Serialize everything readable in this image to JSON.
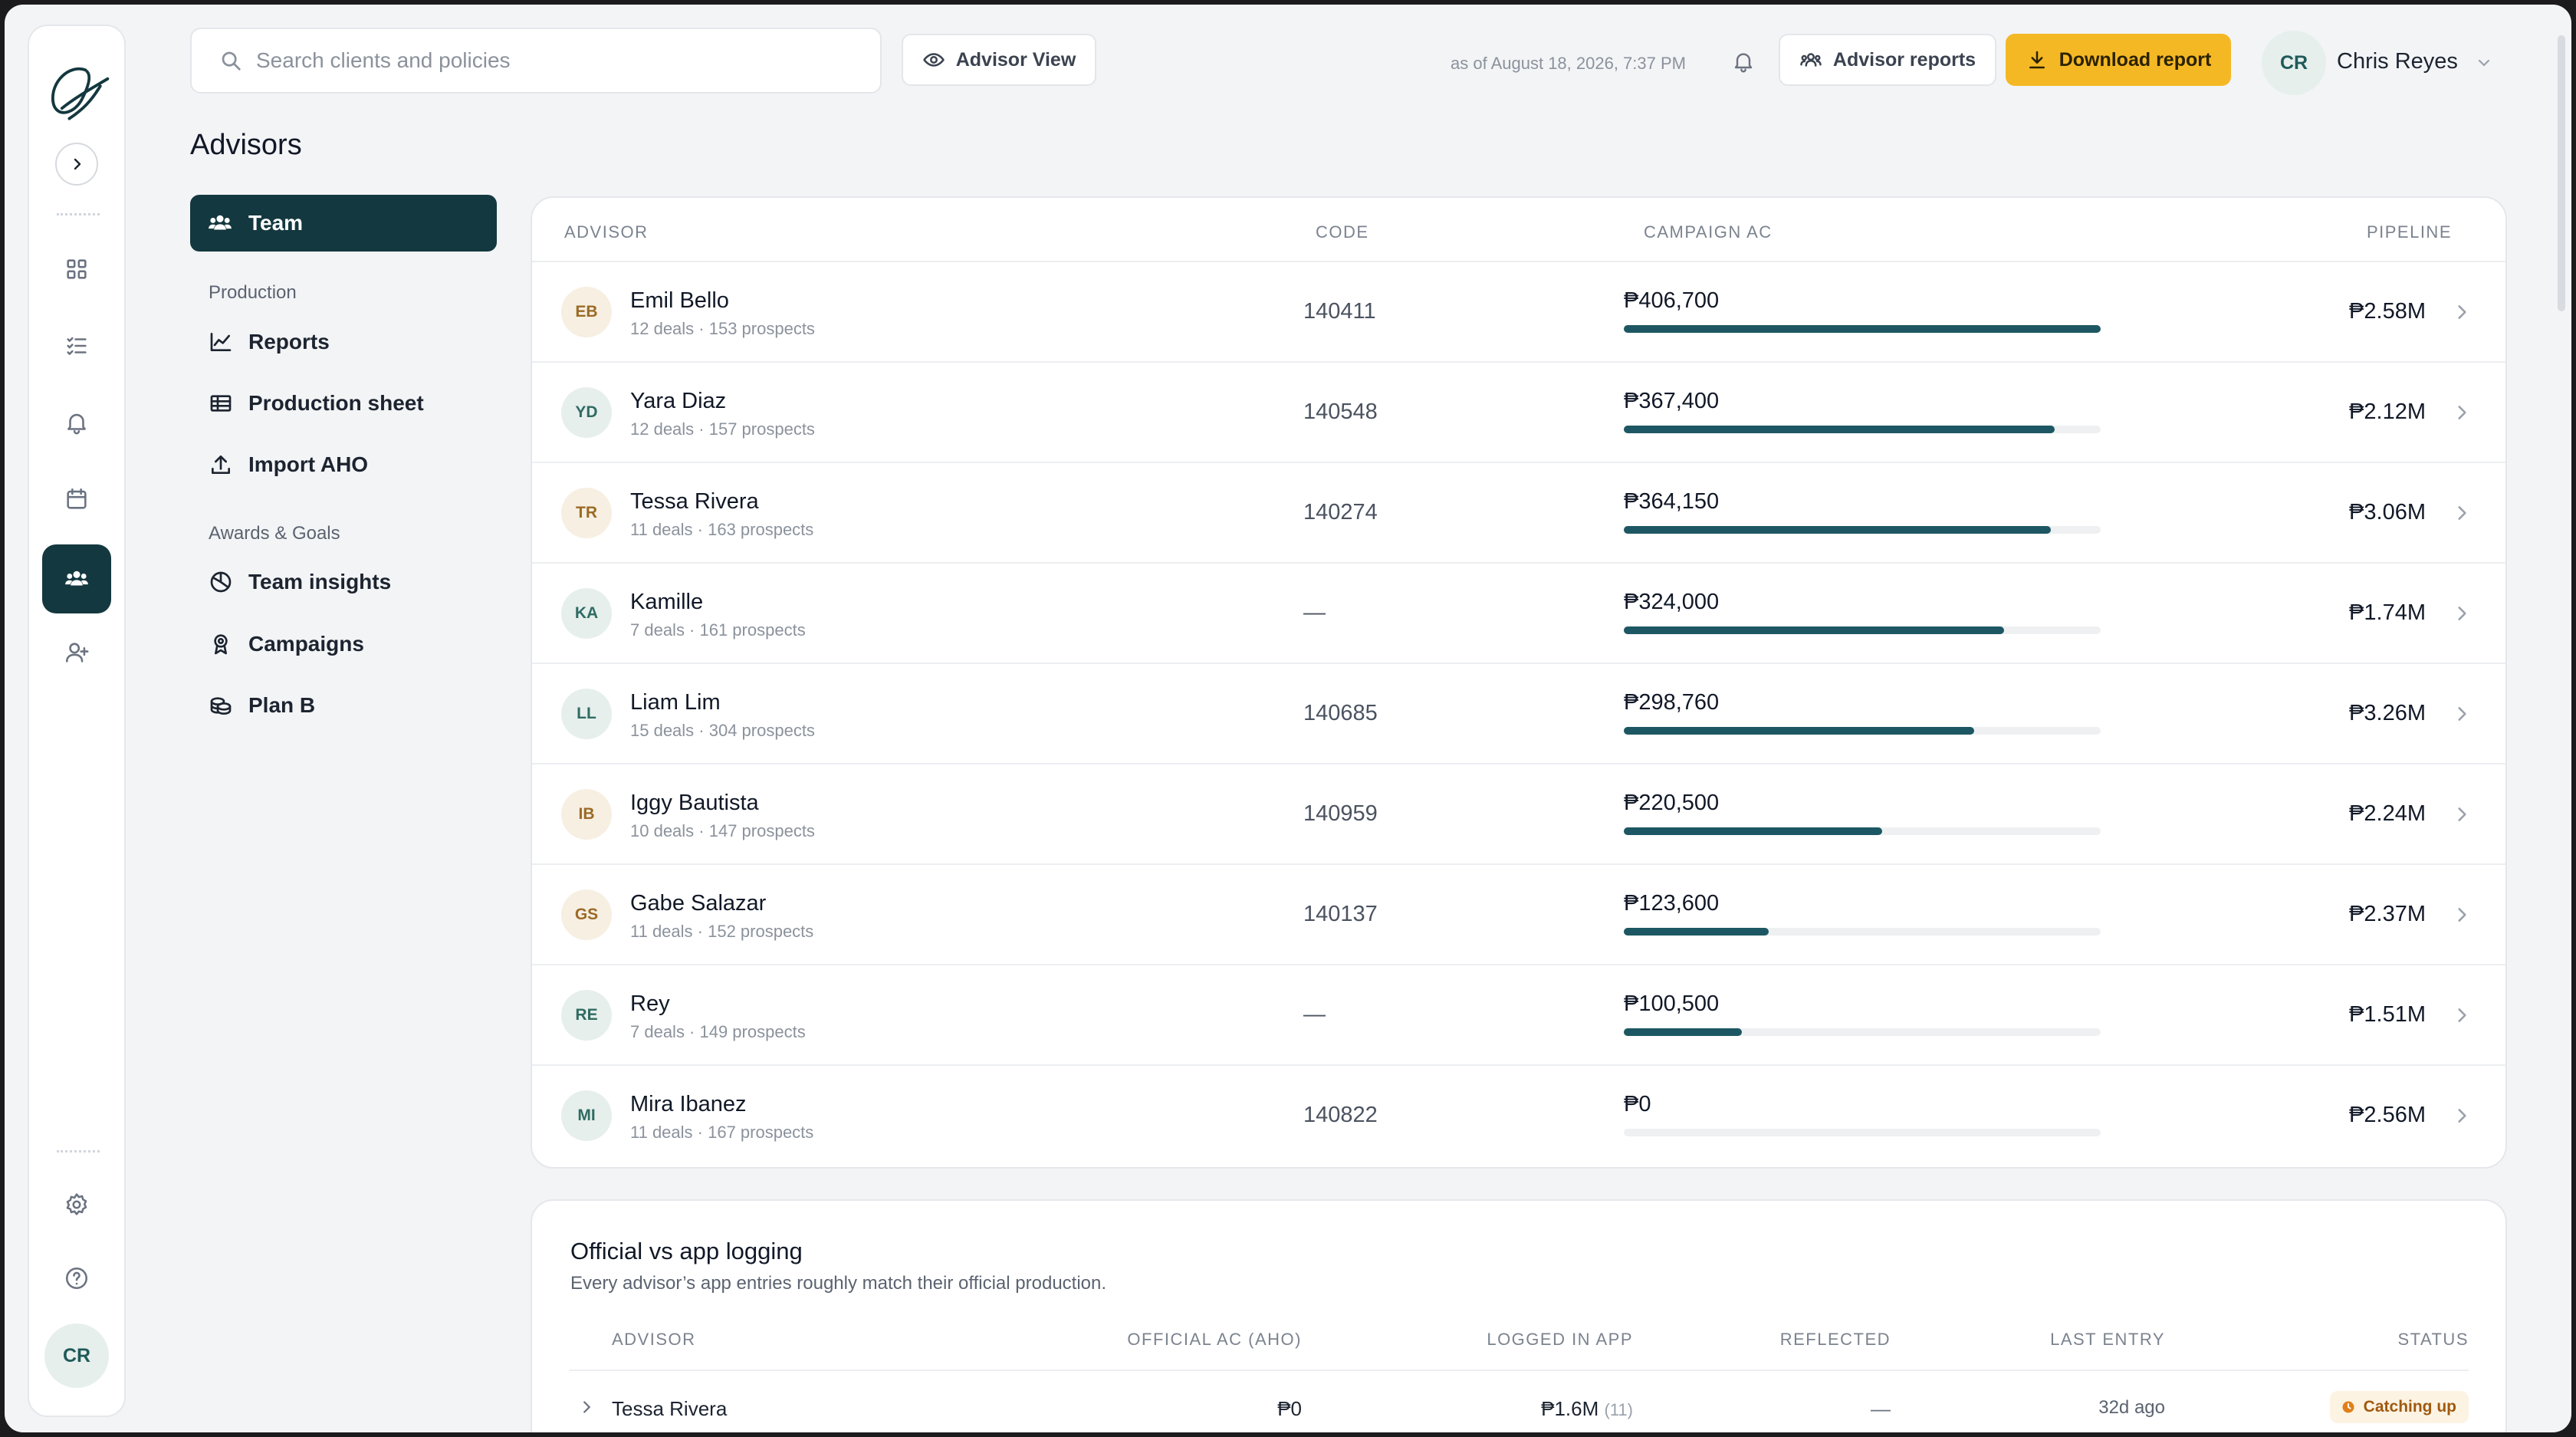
{
  "header": {
    "search_placeholder": "Search clients and policies",
    "advisor_view_label": "Advisor View",
    "as_of": "as of August 18, 2026, 7:37 PM",
    "advisor_reports_label": "Advisor reports",
    "download_label": "Download report",
    "user_initials": "CR",
    "user_name": "Chris Reyes"
  },
  "rail": {
    "icons": [
      "logo-icon",
      "expand-icon",
      "dashboard-icon",
      "tasks-icon",
      "bell-icon",
      "calendar-icon",
      "team-icon",
      "add-user-icon",
      "settings-icon",
      "help-icon"
    ],
    "user_initials": "CR"
  },
  "page_title": "Advisors",
  "nav": {
    "active": "Team",
    "section_production": "Production",
    "reports": "Reports",
    "production_sheet": "Production sheet",
    "import_aho": "Import AHO",
    "section_awards": "Awards & Goals",
    "team_insights": "Team insights",
    "campaigns": "Campaigns",
    "plan_b": "Plan B"
  },
  "table": {
    "headers": {
      "advisor": "ADVISOR",
      "code": "CODE",
      "campaign": "CAMPAIGN AC",
      "pipeline": "PIPELINE"
    },
    "rows": [
      {
        "initials": "EB",
        "tone": "warm",
        "name": "Emil Bello",
        "sub": "12 deals · 153 prospects",
        "code": "140411",
        "ac": "₱406,700",
        "ac_value": 406700,
        "pipeline": "₱2.58M"
      },
      {
        "initials": "YD",
        "tone": "green",
        "name": "Yara Diaz",
        "sub": "12 deals · 157 prospects",
        "code": "140548",
        "ac": "₱367,400",
        "ac_value": 367400,
        "pipeline": "₱2.12M"
      },
      {
        "initials": "TR",
        "tone": "warm",
        "name": "Tessa Rivera",
        "sub": "11 deals · 163 prospects",
        "code": "140274",
        "ac": "₱364,150",
        "ac_value": 364150,
        "pipeline": "₱3.06M"
      },
      {
        "initials": "KA",
        "tone": "green",
        "name": "Kamille",
        "sub": "7 deals · 161 prospects",
        "code": "—",
        "ac": "₱324,000",
        "ac_value": 324000,
        "pipeline": "₱1.74M"
      },
      {
        "initials": "LL",
        "tone": "green",
        "name": "Liam Lim",
        "sub": "15 deals · 304 prospects",
        "code": "140685",
        "ac": "₱298,760",
        "ac_value": 298760,
        "pipeline": "₱3.26M"
      },
      {
        "initials": "IB",
        "tone": "warm",
        "name": "Iggy Bautista",
        "sub": "10 deals · 147 prospects",
        "code": "140959",
        "ac": "₱220,500",
        "ac_value": 220500,
        "pipeline": "₱2.24M"
      },
      {
        "initials": "GS",
        "tone": "warm",
        "name": "Gabe Salazar",
        "sub": "11 deals · 152 prospects",
        "code": "140137",
        "ac": "₱123,600",
        "ac_value": 123600,
        "pipeline": "₱2.37M"
      },
      {
        "initials": "RE",
        "tone": "green",
        "name": "Rey",
        "sub": "7 deals · 149 prospects",
        "code": "—",
        "ac": "₱100,500",
        "ac_value": 100500,
        "pipeline": "₱1.51M"
      },
      {
        "initials": "MI",
        "tone": "green",
        "name": "Mira Ibanez",
        "sub": "11 deals · 167 prospects",
        "code": "140822",
        "ac": "₱0",
        "ac_value": 0,
        "pipeline": "₱2.56M"
      }
    ],
    "bar_max": 406700
  },
  "logging": {
    "title": "Official vs app logging",
    "subtitle": "Every advisor’s app entries roughly match their official production.",
    "headers": {
      "advisor": "ADVISOR",
      "official": "OFFICIAL AC (AHO)",
      "logged": "LOGGED IN APP",
      "reflected": "REFLECTED",
      "last": "LAST ENTRY",
      "status": "STATUS"
    },
    "row": {
      "advisor": "Tessa Rivera",
      "official": "₱0",
      "logged": "₱1.6M",
      "logged_count": "(11)",
      "reflected": "—",
      "last": "32d ago",
      "status": "Catching up"
    }
  },
  "colors": {
    "accent": "#14383f",
    "bar": "#1d5763",
    "download": "#f5b825",
    "badge_bg": "#fdf3e3",
    "badge_text": "#a0590f"
  }
}
